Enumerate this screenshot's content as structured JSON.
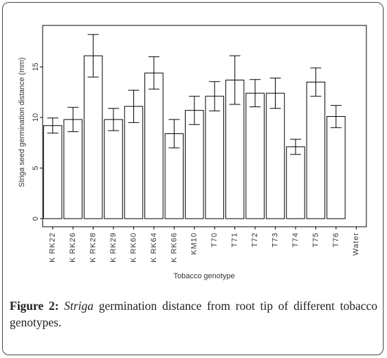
{
  "chart_data": {
    "type": "bar",
    "categories": [
      "K RK22",
      "K RK26",
      "K RK28",
      "K RK29",
      "K RK60",
      "K RK64",
      "K RK66",
      "KM10",
      "T70",
      "T71",
      "T72",
      "T73",
      "T74",
      "T75",
      "T76",
      "Water"
    ],
    "values": [
      9.2,
      9.8,
      16.1,
      9.8,
      11.1,
      14.4,
      8.4,
      10.7,
      12.1,
      13.7,
      12.4,
      12.4,
      7.1,
      13.5,
      10.1,
      0
    ],
    "errors": [
      0.75,
      1.2,
      2.1,
      1.1,
      1.6,
      1.6,
      1.4,
      1.4,
      1.45,
      2.4,
      1.35,
      1.5,
      0.75,
      1.4,
      1.1,
      0
    ],
    "color": "#ffffff",
    "ylim": [
      -0.8,
      19.1
    ],
    "yticks": [
      0,
      5,
      10,
      15
    ],
    "x_label": "Tobacco genotype",
    "y_label": "Striga seed germination distance (mm)"
  },
  "caption": {
    "label": "Figure 2:",
    "italic": "Striga",
    "text": "germination distance from root tip of different tobacco genotypes."
  }
}
